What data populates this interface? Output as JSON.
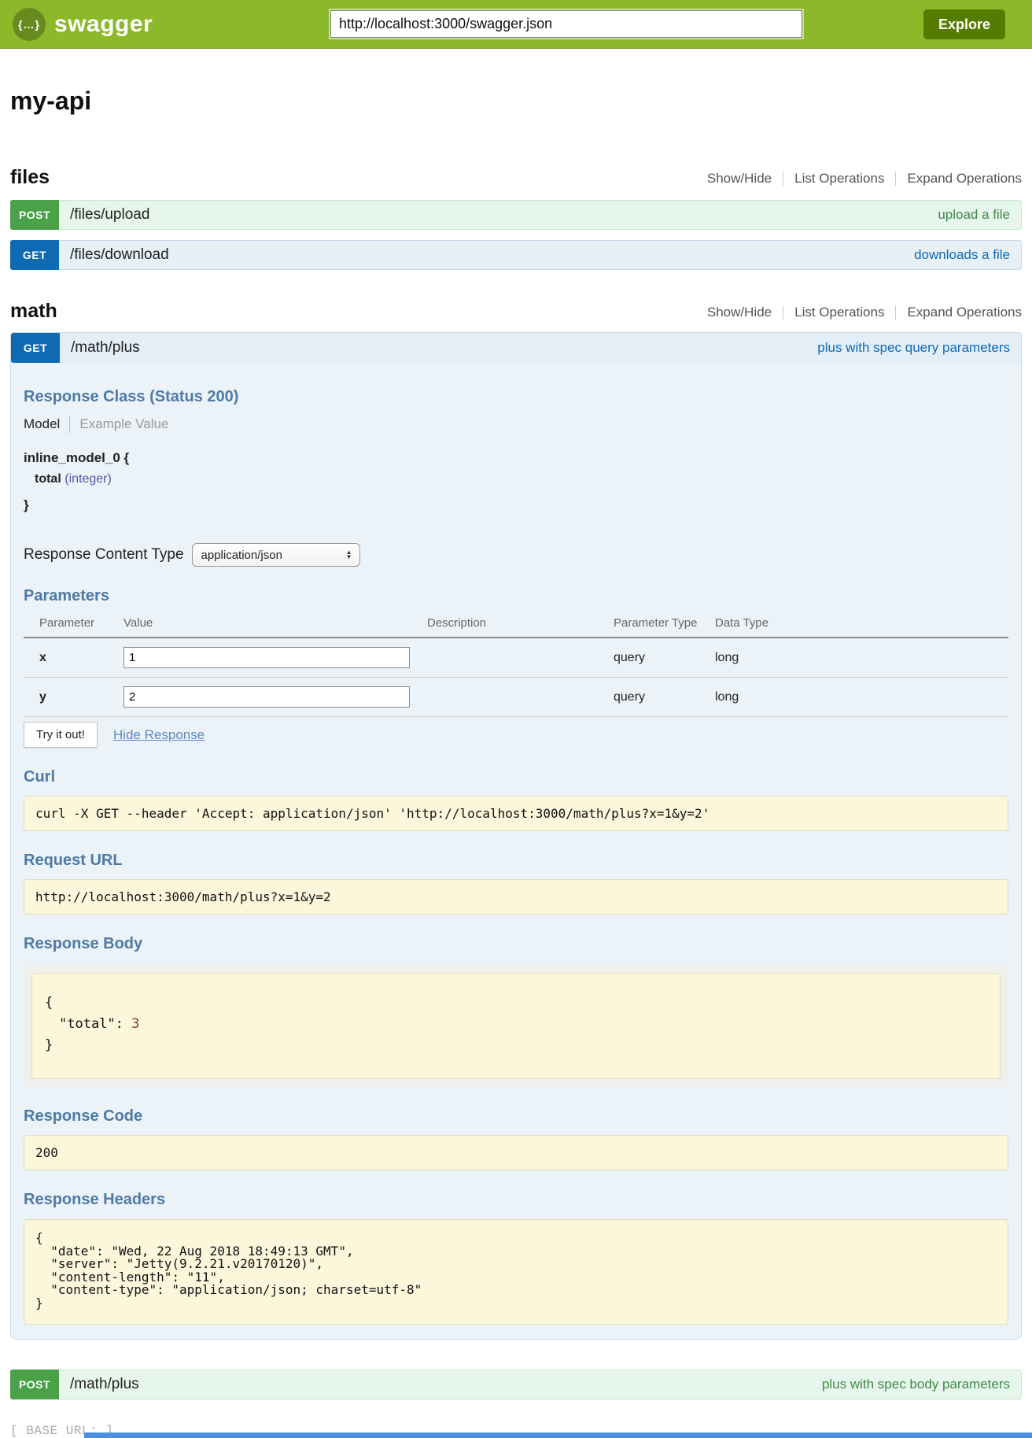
{
  "colors": {
    "brand_green": "#8bb92a",
    "explore_green": "#557c00",
    "post_green": "#49a248",
    "get_blue": "#0f6ab4",
    "heading_blue": "#4e7aa5",
    "code_box_bg": "#fcf6db"
  },
  "header": {
    "logo": "swagger",
    "logo_icon": "{…}",
    "url_value": "http://localhost:3000/swagger.json",
    "explore": "Explore"
  },
  "title": "my-api",
  "op_links": {
    "show_hide": "Show/Hide",
    "list_ops": "List Operations",
    "expand_ops": "Expand Operations"
  },
  "files": {
    "title": "files",
    "upload": {
      "method": "POST",
      "path": "/files/upload",
      "summary": "upload a file"
    },
    "download": {
      "method": "GET",
      "path": "/files/download",
      "summary": "downloads a file"
    }
  },
  "math": {
    "title": "math",
    "get_plus": {
      "method": "GET",
      "path": "/math/plus",
      "summary": "plus with spec query parameters",
      "response_class": "Response Class (Status 200)",
      "tab_model": "Model",
      "tab_example": "Example Value",
      "model_sig": {
        "name": "inline_model_0 {",
        "prop": "total",
        "prop_type": "(integer)",
        "close": "}"
      },
      "content_type_label": "Response Content Type",
      "content_type_value": "application/json",
      "parameters_title": "Parameters",
      "table": {
        "h_parameter": "Parameter",
        "h_value": "Value",
        "h_description": "Description",
        "h_param_type": "Parameter Type",
        "h_data_type": "Data Type",
        "rows": [
          {
            "name": "x",
            "value": "1",
            "description": "",
            "param_type": "query",
            "data_type": "long"
          },
          {
            "name": "y",
            "value": "2",
            "description": "",
            "param_type": "query",
            "data_type": "long"
          }
        ]
      },
      "try_it_out": "Try it out!",
      "hide_response": "Hide Response",
      "curl_title": "Curl",
      "curl_cmd": "curl -X GET --header 'Accept: application/json' 'http://localhost:3000/math/plus?x=1&y=2'",
      "request_url_title": "Request URL",
      "request_url": "http://localhost:3000/math/plus?x=1&y=2",
      "response_body_title": "Response Body",
      "rb_open": "{",
      "rb_key": "\"total\":",
      "rb_value": "3",
      "rb_close": "}",
      "response_code_title": "Response Code",
      "response_code": "200",
      "response_headers_title": "Response Headers",
      "response_headers_text": "{\n  \"date\": \"Wed, 22 Aug 2018 18:49:13 GMT\",\n  \"server\": \"Jetty(9.2.21.v20170120)\",\n  \"content-length\": \"11\",\n  \"content-type\": \"application/json; charset=utf-8\"\n}"
    },
    "post_plus": {
      "method": "POST",
      "path": "/math/plus",
      "summary": "plus with spec body parameters"
    }
  },
  "footer": {
    "base_url": "[ BASE URL: ]"
  }
}
